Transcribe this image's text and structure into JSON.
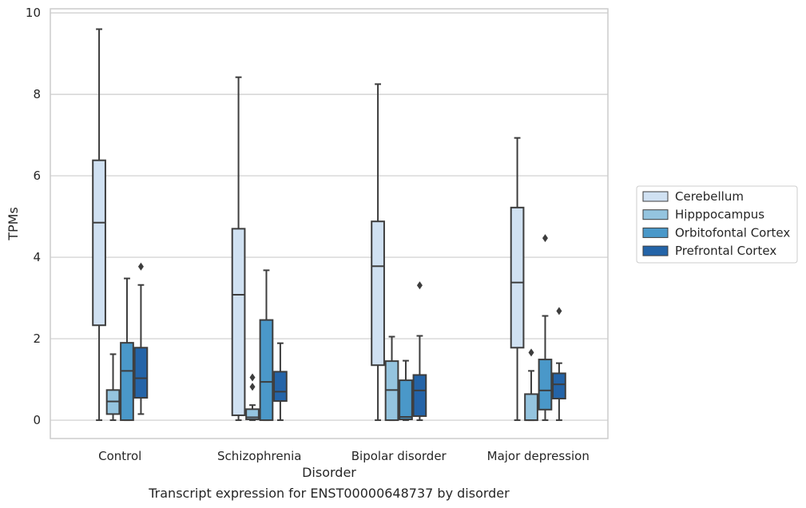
{
  "chart_data": {
    "type": "boxplot",
    "xlabel": "Disorder",
    "ylabel": "TPMs",
    "caption": "Transcript expression for ENST00000648737 by disorder",
    "ylim": [
      -0.45,
      10.1
    ],
    "yticks": [
      "0",
      "2",
      "4",
      "6",
      "8",
      "10"
    ],
    "ytick_values": [
      0,
      2,
      4,
      6,
      8,
      10
    ],
    "grid": "horizontal",
    "legend_position": "right",
    "categories": [
      "Control",
      "Schizophrenia",
      "Bipolar disorder",
      "Major depression"
    ],
    "series": [
      {
        "name": "Cerebellum",
        "color": "#d0e1f2",
        "boxes": [
          {
            "whisker_low": 0,
            "q1": 2.33,
            "median": 4.85,
            "q3": 6.38,
            "whisker_high": 9.6,
            "outliers": []
          },
          {
            "whisker_low": 0,
            "q1": 0.12,
            "median": 3.08,
            "q3": 4.7,
            "whisker_high": 8.42,
            "outliers": []
          },
          {
            "whisker_low": 0,
            "q1": 1.35,
            "median": 3.78,
            "q3": 4.88,
            "whisker_high": 8.25,
            "outliers": []
          },
          {
            "whisker_low": 0,
            "q1": 1.78,
            "median": 3.38,
            "q3": 5.22,
            "whisker_high": 6.93,
            "outliers": []
          }
        ]
      },
      {
        "name": "Hipppocampus",
        "color": "#94c4df",
        "boxes": [
          {
            "whisker_low": 0,
            "q1": 0.15,
            "median": 0.46,
            "q3": 0.74,
            "whisker_high": 1.62,
            "outliers": []
          },
          {
            "whisker_low": 0,
            "q1": 0.02,
            "median": 0.07,
            "q3": 0.27,
            "whisker_high": 0.37,
            "outliers": [
              0.82,
              1.05
            ]
          },
          {
            "whisker_low": 0,
            "q1": 0.0,
            "median": 0.74,
            "q3": 1.45,
            "whisker_high": 2.05,
            "outliers": []
          },
          {
            "whisker_low": 0,
            "q1": 0.0,
            "median": 0.0,
            "q3": 0.64,
            "whisker_high": 1.21,
            "outliers": [
              1.66
            ]
          }
        ]
      },
      {
        "name": "Orbitofontal Cortex",
        "color": "#4a98c9",
        "boxes": [
          {
            "whisker_low": 0,
            "q1": 0.0,
            "median": 1.21,
            "q3": 1.9,
            "whisker_high": 3.48,
            "outliers": []
          },
          {
            "whisker_low": 0,
            "q1": 0.0,
            "median": 0.94,
            "q3": 2.46,
            "whisker_high": 3.68,
            "outliers": []
          },
          {
            "whisker_low": 0,
            "q1": 0.02,
            "median": 0.08,
            "q3": 0.98,
            "whisker_high": 1.46,
            "outliers": []
          },
          {
            "whisker_low": 0,
            "q1": 0.26,
            "median": 0.73,
            "q3": 1.49,
            "whisker_high": 2.56,
            "outliers": [
              4.47
            ]
          }
        ]
      },
      {
        "name": "Prefrontal Cortex",
        "color": "#2464a8",
        "boxes": [
          {
            "whisker_low": 0.15,
            "q1": 0.55,
            "median": 1.03,
            "q3": 1.78,
            "whisker_high": 3.32,
            "outliers": [
              3.77
            ]
          },
          {
            "whisker_low": 0,
            "q1": 0.47,
            "median": 0.7,
            "q3": 1.19,
            "whisker_high": 1.89,
            "outliers": []
          },
          {
            "whisker_low": 0,
            "q1": 0.1,
            "median": 0.73,
            "q3": 1.11,
            "whisker_high": 2.07,
            "outliers": [
              3.31
            ]
          },
          {
            "whisker_low": 0,
            "q1": 0.53,
            "median": 0.88,
            "q3": 1.15,
            "whisker_high": 1.4,
            "outliers": [
              2.68
            ]
          }
        ]
      }
    ]
  }
}
